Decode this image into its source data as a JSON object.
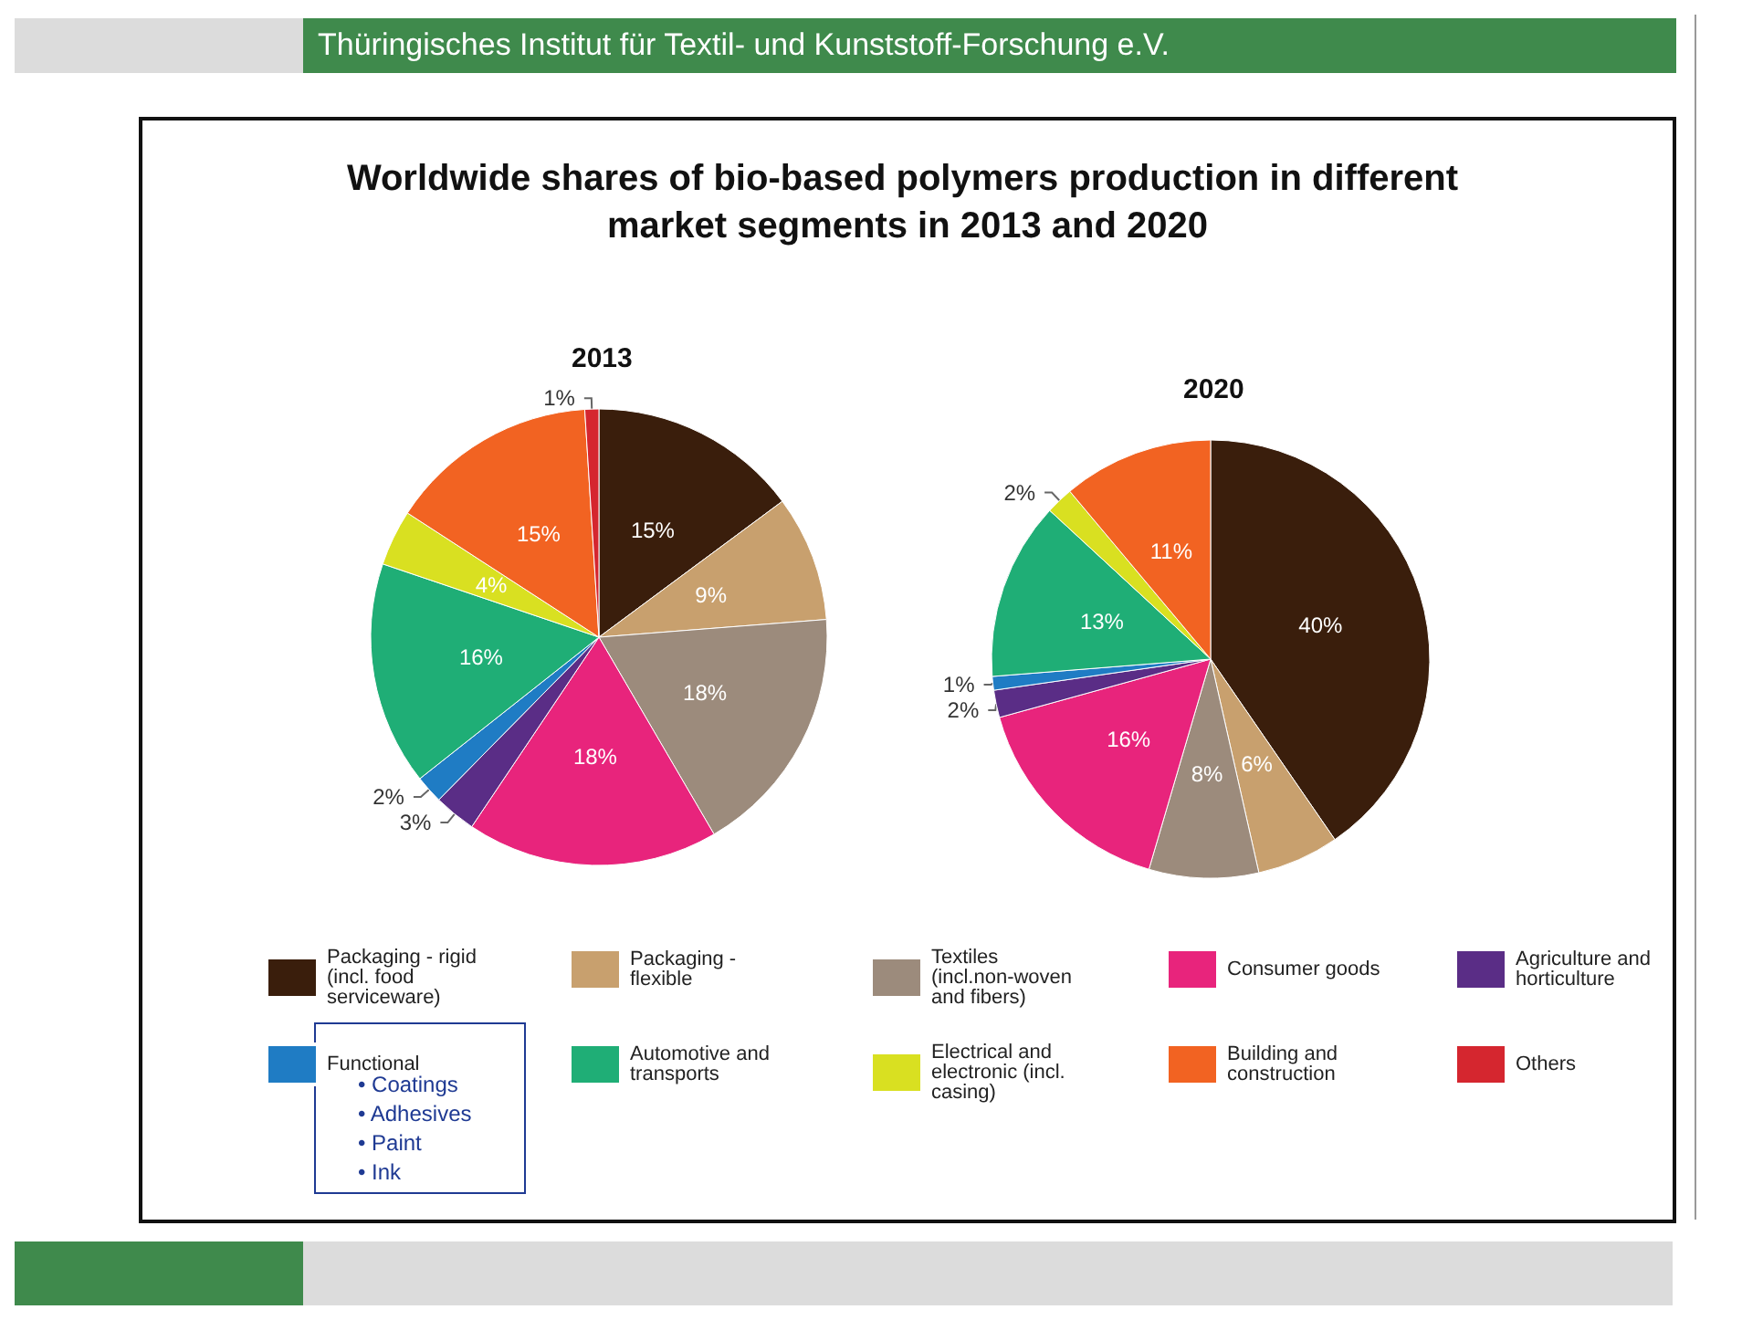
{
  "chart_data": {
    "type": "pie",
    "title": "Worldwide shares of bio-based polymers production in different market segments in 2013 and 2020",
    "categories": [
      "Packaging - rigid (incl. food serviceware)",
      "Packaging - flexible",
      "Textiles (incl.non-woven and fibers)",
      "Consumer goods",
      "Agriculture and horticulture",
      "Functional",
      "Automotive and transports",
      "Electrical and electronic (incl. casing)",
      "Building and construction",
      "Others"
    ],
    "colors": [
      "#3a1e0c",
      "#c8a06e",
      "#9c8b7c",
      "#e8247c",
      "#5a2d86",
      "#1f7cc4",
      "#1fae76",
      "#d9e021",
      "#f26322",
      "#d5262f"
    ],
    "series": [
      {
        "name": "2013",
        "values": [
          15,
          9,
          18,
          18,
          3,
          2,
          16,
          4,
          15,
          1
        ],
        "value_labels": [
          "15%",
          "9%",
          "18%",
          "18%",
          "3%",
          "2%",
          "16%",
          "4%",
          "15%",
          "1%"
        ]
      },
      {
        "name": "2020",
        "values": [
          40,
          6,
          8,
          16,
          2,
          1,
          13,
          2,
          11,
          null
        ],
        "value_labels": [
          "40%",
          "6%",
          "8%",
          "16%",
          "2%",
          "1%",
          "13%",
          "2%",
          "11%",
          null
        ]
      }
    ],
    "legend": "bottom",
    "annotations": [
      "Thüringisches Institut für Textil- und Kunststoff-Forschung e.V.",
      "• Coatings",
      "• Adhesives",
      "• Paint",
      "• Ink"
    ]
  }
}
